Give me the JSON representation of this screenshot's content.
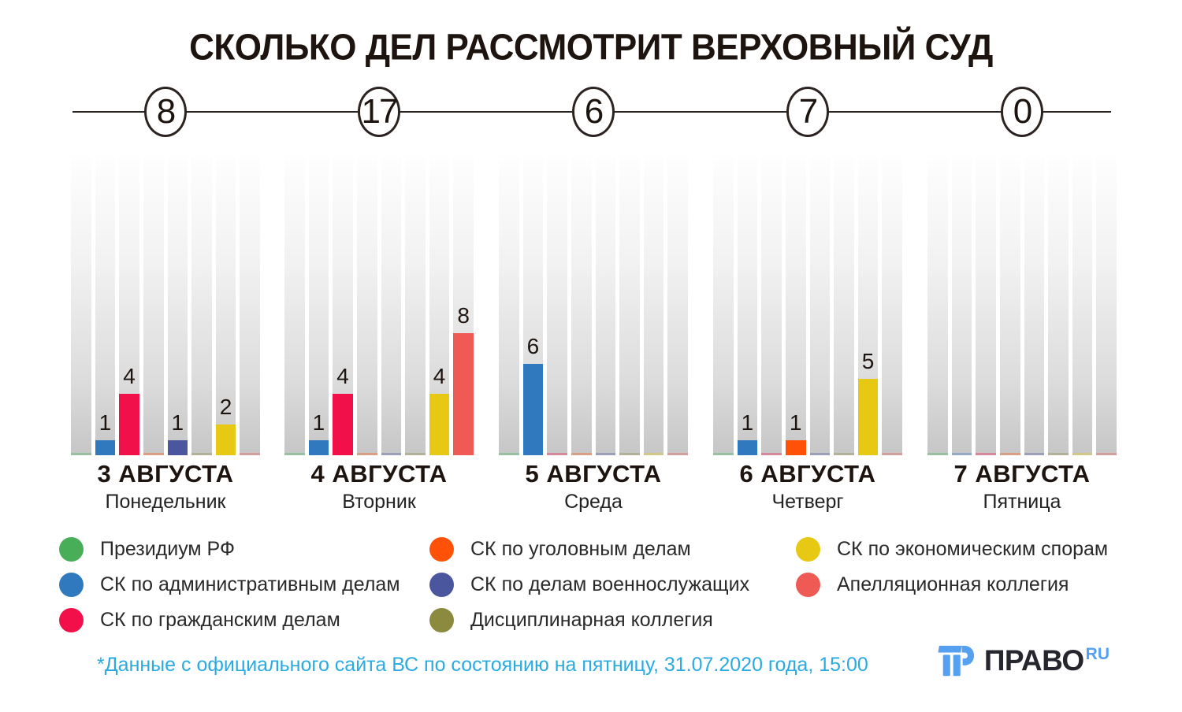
{
  "title": "СКОЛЬКО ДЕЛ РАССМОТРИТ ВЕРХОВНЫЙ СУД",
  "footnote": "*Данные с официального сайта ВС по состоянию на пятницу, 31.07.2020 года, 15:00",
  "logo": {
    "brand": "ПРАВО",
    "suffix": "RU"
  },
  "colors": {
    "accent_footnote": "#29abe2",
    "logo_dark": "#26262e",
    "logo_blue": "#55a0f0",
    "timeline_ink": "#2a2320",
    "track_top": "#fefefe",
    "track_bottom": "#c6c6c6"
  },
  "chart_data": {
    "type": "bar",
    "title": "СКОЛЬКО ДЕЛ РАССМОТРИТ ВЕРХОВНЫЙ СУД",
    "legend_position": "bottom",
    "grid": false,
    "ylim": [
      0,
      19.6
    ],
    "unit": "дел",
    "categories": [
      {
        "id": "presidium",
        "label": "Президиум РФ",
        "color": "#48ae58"
      },
      {
        "id": "admin",
        "label": "СК по административным делам",
        "color": "#3079be"
      },
      {
        "id": "civil",
        "label": "СК по гражданским делам",
        "color": "#f1104a"
      },
      {
        "id": "criminal",
        "label": "СК по уголовным делам",
        "color": "#ff5208"
      },
      {
        "id": "military",
        "label": "СК по делам военнослужащих",
        "color": "#4a569d"
      },
      {
        "id": "disciplinary",
        "label": "Дисциплинарная коллегия",
        "color": "#8b8a3e"
      },
      {
        "id": "economic",
        "label": "СК по экономическим спорам",
        "color": "#e7c812"
      },
      {
        "id": "appeal",
        "label": "Апелляционная коллегия",
        "color": "#ef5a54"
      }
    ],
    "days": [
      {
        "date": "3 АВГУСТА",
        "weekday": "Понедельник",
        "total": 8,
        "values": [
          0,
          1,
          4,
          0,
          1,
          0,
          2,
          0
        ]
      },
      {
        "date": "4 АВГУСТА",
        "weekday": "Вторник",
        "total": 17,
        "values": [
          0,
          1,
          4,
          0,
          0,
          0,
          4,
          8
        ]
      },
      {
        "date": "5 АВГУСТА",
        "weekday": "Среда",
        "total": 6,
        "values": [
          0,
          6,
          0,
          0,
          0,
          0,
          0,
          0
        ]
      },
      {
        "date": "6 АВГУСТА",
        "weekday": "Четверг",
        "total": 7,
        "values": [
          0,
          1,
          0,
          1,
          0,
          0,
          5,
          0
        ]
      },
      {
        "date": "7 АВГУСТА",
        "weekday": "Пятница",
        "total": 0,
        "values": [
          0,
          0,
          0,
          0,
          0,
          0,
          0,
          0
        ]
      }
    ]
  }
}
